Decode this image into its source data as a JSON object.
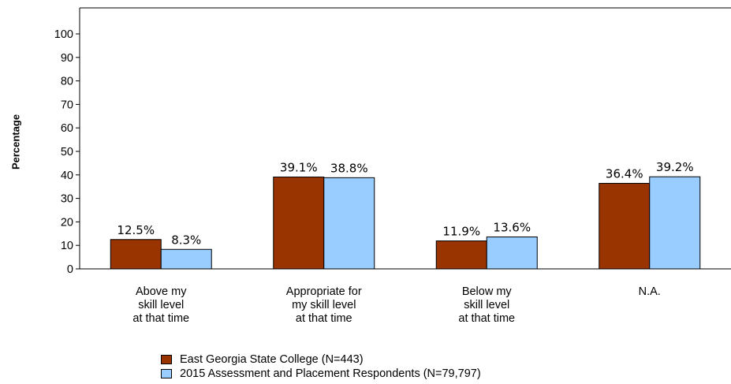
{
  "chart_data": {
    "type": "bar",
    "ylabel": "Percentage",
    "ylim": [
      0,
      100
    ],
    "yticks": [
      "0",
      "10",
      "20",
      "30",
      "40",
      "50",
      "60",
      "70",
      "80",
      "90",
      "100"
    ],
    "categories": [
      [
        "Above my",
        "skill level",
        "at that time"
      ],
      [
        "Appropriate for",
        "my skill level",
        "at that time"
      ],
      [
        "Below my",
        "skill level",
        "at that time"
      ],
      [
        "N.A."
      ]
    ],
    "series": [
      {
        "name": "East Georgia State College (N=443)",
        "color": "#993300",
        "values": [
          12.5,
          39.1,
          11.9,
          36.4
        ],
        "labels": [
          "12.5%",
          "39.1%",
          "11.9%",
          "36.4%"
        ]
      },
      {
        "name": "2015 Assessment and Placement Respondents (N=79,797)",
        "color": "#99ccff",
        "values": [
          8.3,
          38.8,
          13.6,
          39.2
        ],
        "labels": [
          "8.3%",
          "38.8%",
          "13.6%",
          "39.2%"
        ]
      }
    ],
    "grid": false,
    "legend_position": "bottom"
  }
}
